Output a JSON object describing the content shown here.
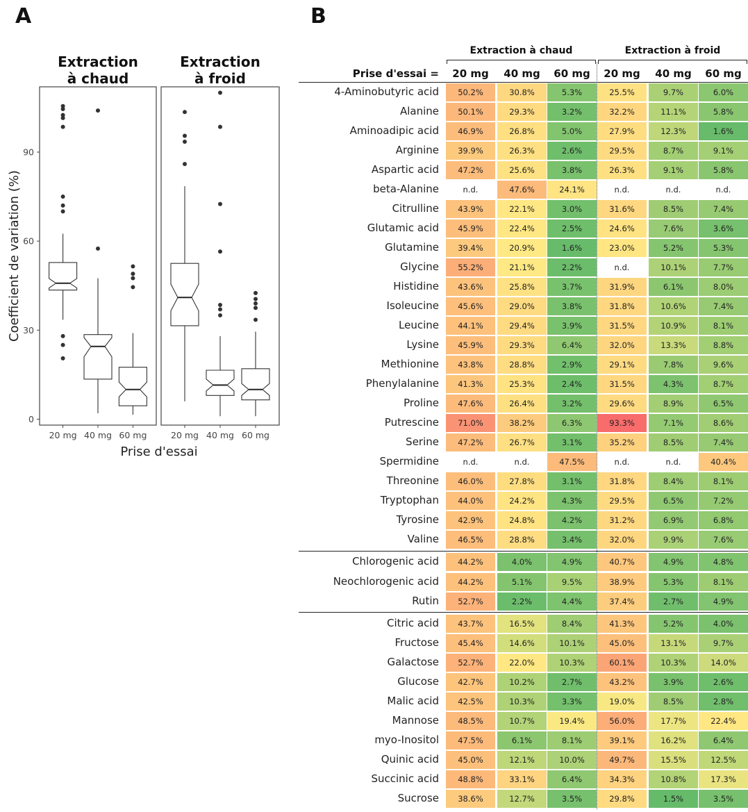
{
  "panels": {
    "a": "A",
    "b": "B"
  },
  "chart_data": [
    {
      "type": "box",
      "facets": [
        "Extraction\nà chaud",
        "Extraction\nà froid"
      ],
      "categories": [
        "20 mg",
        "40 mg",
        "60 mg"
      ],
      "xlabel": "Prise d'essai",
      "ylabel": "Coefficient de variation (%)",
      "ylim": [
        -2,
        112
      ],
      "yticks": [
        0,
        30,
        60,
        90
      ],
      "grid": false,
      "boxes": [
        {
          "facet": 0,
          "cat": 0,
          "q1": 43.5,
          "median": 45.8,
          "q3": 52.8,
          "notch_lo": 44.2,
          "notch_hi": 47.4,
          "whisker_lo": 33.5,
          "whisker_hi": 62.5,
          "outliers": [
            105.5,
            104.5,
            102.5,
            101.5,
            98.5,
            75,
            72,
            70,
            28,
            25,
            20.5
          ]
        },
        {
          "facet": 0,
          "cat": 1,
          "q1": 13.5,
          "median": 24.5,
          "q3": 28.5,
          "notch_lo": 21,
          "notch_hi": 27.5,
          "whisker_lo": 2,
          "whisker_hi": 47.5,
          "outliers": [
            104,
            57.5
          ]
        },
        {
          "facet": 0,
          "cat": 2,
          "q1": 4.5,
          "median": 10,
          "q3": 17.5,
          "notch_lo": 7.5,
          "notch_hi": 12.5,
          "whisker_lo": 1.5,
          "whisker_hi": 29,
          "outliers": [
            51.5,
            49,
            47.5,
            44.5
          ]
        },
        {
          "facet": 1,
          "cat": 0,
          "q1": 31.5,
          "median": 41,
          "q3": 52.5,
          "notch_lo": 36.5,
          "notch_hi": 45.5,
          "whisker_lo": 6,
          "whisker_hi": 78.5,
          "outliers": [
            103.5,
            95.5,
            93.5,
            86
          ]
        },
        {
          "facet": 1,
          "cat": 1,
          "q1": 8,
          "median": 11.5,
          "q3": 16.5,
          "notch_lo": 9.5,
          "notch_hi": 13.5,
          "whisker_lo": 1,
          "whisker_hi": 28,
          "outliers": [
            110,
            98.5,
            72.5,
            56.5,
            38.5,
            37,
            35
          ]
        },
        {
          "facet": 1,
          "cat": 2,
          "q1": 6.5,
          "median": 10,
          "q3": 17,
          "notch_lo": 8,
          "notch_hi": 12,
          "whisker_lo": 1,
          "whisker_hi": 29.5,
          "outliers": [
            42.5,
            40.5,
            39,
            37.5,
            33.5
          ]
        }
      ]
    },
    {
      "type": "heatmap",
      "group_titles": [
        "Extraction à chaud",
        "Extraction à froid"
      ],
      "header_label": "Prise d'essai =",
      "columns": [
        "20 mg",
        "40 mg",
        "60 mg",
        "20 mg",
        "40 mg",
        "60 mg"
      ],
      "rows": [
        {
          "name": "4-Aminobutyric acid",
          "values": [
            "50.2%",
            "30.8%",
            "5.3%",
            "25.5%",
            "9.7%",
            "6.0%"
          ]
        },
        {
          "name": "Alanine",
          "values": [
            "50.1%",
            "29.3%",
            "3.2%",
            "32.2%",
            "11.1%",
            "5.8%"
          ]
        },
        {
          "name": "Aminoadipic acid",
          "values": [
            "46.9%",
            "26.8%",
            "5.0%",
            "27.9%",
            "12.3%",
            "1.6%"
          ]
        },
        {
          "name": "Arginine",
          "values": [
            "39.9%",
            "26.3%",
            "2.6%",
            "29.5%",
            "8.7%",
            "9.1%"
          ]
        },
        {
          "name": "Aspartic acid",
          "values": [
            "47.2%",
            "25.6%",
            "3.8%",
            "26.3%",
            "9.1%",
            "5.8%"
          ]
        },
        {
          "name": "beta-Alanine",
          "values": [
            "n.d.",
            "47.6%",
            "24.1%",
            "n.d.",
            "n.d.",
            "n.d."
          ]
        },
        {
          "name": "Citrulline",
          "values": [
            "43.9%",
            "22.1%",
            "3.0%",
            "31.6%",
            "8.5%",
            "7.4%"
          ]
        },
        {
          "name": "Glutamic acid",
          "values": [
            "45.9%",
            "22.4%",
            "2.5%",
            "24.6%",
            "7.6%",
            "3.6%"
          ]
        },
        {
          "name": "Glutamine",
          "values": [
            "39.4%",
            "20.9%",
            "1.6%",
            "23.0%",
            "5.2%",
            "5.3%"
          ]
        },
        {
          "name": "Glycine",
          "values": [
            "55.2%",
            "21.1%",
            "2.2%",
            "n.d.",
            "10.1%",
            "7.7%"
          ]
        },
        {
          "name": "Histidine",
          "values": [
            "43.6%",
            "25.8%",
            "3.7%",
            "31.9%",
            "6.1%",
            "8.0%"
          ]
        },
        {
          "name": "Isoleucine",
          "values": [
            "45.6%",
            "29.0%",
            "3.8%",
            "31.8%",
            "10.6%",
            "7.4%"
          ]
        },
        {
          "name": "Leucine",
          "values": [
            "44.1%",
            "29.4%",
            "3.9%",
            "31.5%",
            "10.9%",
            "8.1%"
          ]
        },
        {
          "name": "Lysine",
          "values": [
            "45.9%",
            "29.3%",
            "6.4%",
            "32.0%",
            "13.3%",
            "8.8%"
          ]
        },
        {
          "name": "Methionine",
          "values": [
            "43.8%",
            "28.8%",
            "2.9%",
            "29.1%",
            "7.8%",
            "9.6%"
          ]
        },
        {
          "name": "Phenylalanine",
          "values": [
            "41.3%",
            "25.3%",
            "2.4%",
            "31.5%",
            "4.3%",
            "8.7%"
          ]
        },
        {
          "name": "Proline",
          "values": [
            "47.6%",
            "26.4%",
            "3.2%",
            "29.6%",
            "8.9%",
            "6.5%"
          ]
        },
        {
          "name": "Putrescine",
          "values": [
            "71.0%",
            "38.2%",
            "6.3%",
            "93.3%",
            "7.1%",
            "8.6%"
          ]
        },
        {
          "name": "Serine",
          "values": [
            "47.2%",
            "26.7%",
            "3.1%",
            "35.2%",
            "8.5%",
            "7.4%"
          ]
        },
        {
          "name": "Spermidine",
          "values": [
            "n.d.",
            "n.d.",
            "47.5%",
            "n.d.",
            "n.d.",
            "40.4%"
          ]
        },
        {
          "name": "Threonine",
          "values": [
            "46.0%",
            "27.8%",
            "3.1%",
            "31.8%",
            "8.4%",
            "8.1%"
          ]
        },
        {
          "name": "Tryptophan",
          "values": [
            "44.0%",
            "24.2%",
            "4.3%",
            "29.5%",
            "6.5%",
            "7.2%"
          ]
        },
        {
          "name": "Tyrosine",
          "values": [
            "42.9%",
            "24.8%",
            "4.2%",
            "31.2%",
            "6.9%",
            "6.8%"
          ]
        },
        {
          "name": "Valine",
          "values": [
            "46.5%",
            "28.8%",
            "3.4%",
            "32.0%",
            "9.9%",
            "7.6%"
          ]
        },
        {
          "name": "Chlorogenic acid",
          "values": [
            "44.2%",
            "4.0%",
            "4.9%",
            "40.7%",
            "4.9%",
            "4.8%"
          ]
        },
        {
          "name": "Neochlorogenic acid",
          "values": [
            "44.2%",
            "5.1%",
            "9.5%",
            "38.9%",
            "5.3%",
            "8.1%"
          ]
        },
        {
          "name": "Rutin",
          "values": [
            "52.7%",
            "2.2%",
            "4.4%",
            "37.4%",
            "2.7%",
            "4.9%"
          ]
        },
        {
          "name": "Citric acid",
          "values": [
            "43.7%",
            "16.5%",
            "8.4%",
            "41.3%",
            "5.2%",
            "4.0%"
          ]
        },
        {
          "name": "Fructose",
          "values": [
            "45.4%",
            "14.6%",
            "10.1%",
            "45.0%",
            "13.1%",
            "9.7%"
          ]
        },
        {
          "name": "Galactose",
          "values": [
            "52.7%",
            "22.0%",
            "10.3%",
            "60.1%",
            "10.3%",
            "14.0%"
          ]
        },
        {
          "name": "Glucose",
          "values": [
            "42.7%",
            "10.2%",
            "2.7%",
            "43.2%",
            "3.9%",
            "2.6%"
          ]
        },
        {
          "name": "Malic acid",
          "values": [
            "42.5%",
            "10.3%",
            "3.3%",
            "19.0%",
            "8.5%",
            "2.8%"
          ]
        },
        {
          "name": "Mannose",
          "values": [
            "48.5%",
            "10.7%",
            "19.4%",
            "56.0%",
            "17.7%",
            "22.4%"
          ]
        },
        {
          "name": "myo-Inositol",
          "values": [
            "47.5%",
            "6.1%",
            "8.1%",
            "39.1%",
            "16.2%",
            "6.4%"
          ]
        },
        {
          "name": "Quinic acid",
          "values": [
            "45.0%",
            "12.1%",
            "10.0%",
            "49.7%",
            "15.5%",
            "12.5%"
          ]
        },
        {
          "name": "Succinic acid",
          "values": [
            "48.8%",
            "33.1%",
            "6.4%",
            "34.3%",
            "10.8%",
            "17.3%"
          ]
        },
        {
          "name": "Sucrose",
          "values": [
            "38.6%",
            "12.7%",
            "3.5%",
            "29.8%",
            "1.5%",
            "3.5%"
          ]
        }
      ],
      "color_scale": {
        "low": "#66bb6a",
        "mid": "#ffeb84",
        "high": "#f8696b",
        "na": "#ffffff"
      }
    }
  ]
}
